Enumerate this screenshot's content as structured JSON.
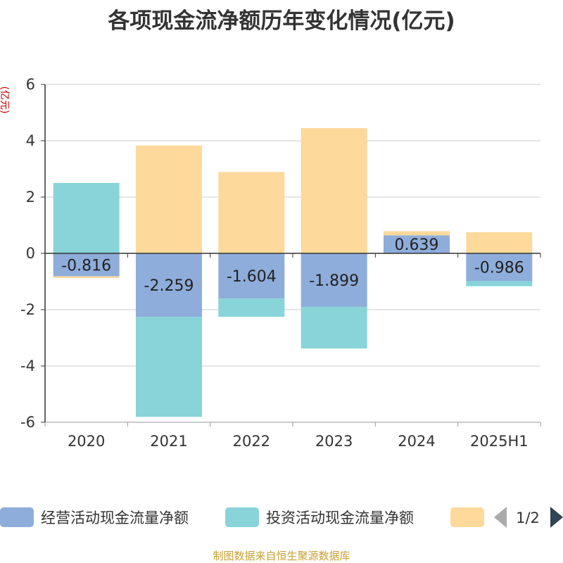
{
  "title": "各项现金流净额历年变化情况(亿元)",
  "source": "制图数据来自恒生聚源数据库",
  "colors": {
    "operating": "#8eadda",
    "investing": "#88d4d8",
    "financing": "#fdd99b",
    "axis": "#333333",
    "grid": "#cccccc",
    "unit": "#cc0000"
  },
  "legend": {
    "page": "1/2",
    "items": [
      {
        "label": "经营活动现金流量净额",
        "color": "#8eadda"
      },
      {
        "label": "投资活动现金流量净额",
        "color": "#88d4d8"
      },
      {
        "label": "",
        "color": "#fdd99b"
      }
    ]
  },
  "chart_data": {
    "type": "bar",
    "stacked": true,
    "title": "各项现金流净额历年变化情况(亿元)",
    "ylabel": "(亿元)",
    "xlabel": "",
    "categories": [
      "2020",
      "2021",
      "2022",
      "2023",
      "2024",
      "2025H1"
    ],
    "ylim": [
      -6,
      6
    ],
    "yticks": [
      -6,
      -4,
      -2,
      0,
      2,
      4,
      6
    ],
    "grid": true,
    "legend_position": "bottom",
    "series": [
      {
        "name": "经营活动现金流量净额",
        "color": "#8eadda",
        "values": [
          -0.816,
          -2.259,
          -1.604,
          -1.899,
          0.639,
          -0.986
        ],
        "labels": [
          "-0.816",
          "-2.259",
          "-1.604",
          "-1.899",
          "0.639",
          "-0.986"
        ]
      },
      {
        "name": "投资活动现金流量净额",
        "color": "#88d4d8",
        "values": [
          2.5,
          -3.55,
          -0.65,
          -1.48,
          0.0,
          -0.18
        ]
      },
      {
        "name": "",
        "color": "#fdd99b",
        "values": [
          -0.06,
          3.83,
          2.89,
          4.45,
          0.15,
          0.75
        ]
      }
    ]
  }
}
